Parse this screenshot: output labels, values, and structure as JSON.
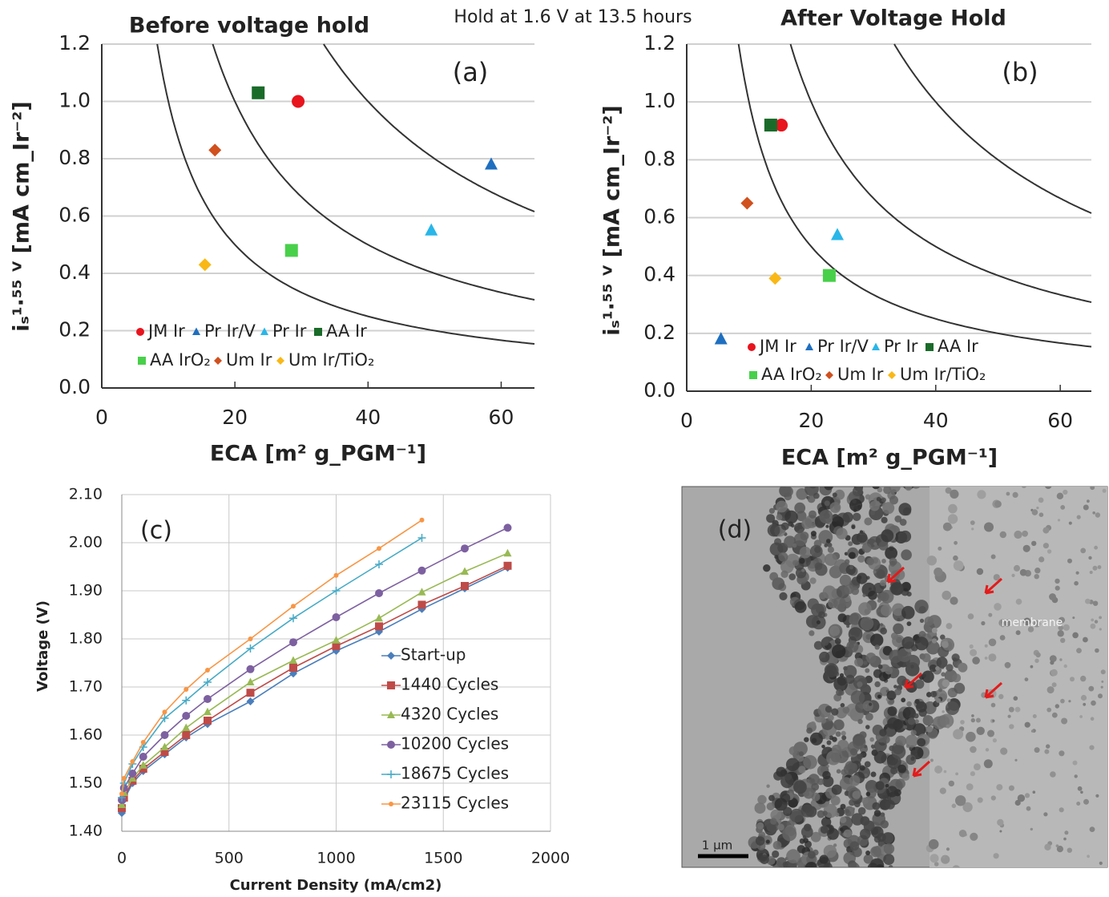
{
  "header": "Hold at 1.6 V at 13.5 hours",
  "chart_data": [
    {
      "type": "scatter",
      "title": "Before voltage hold",
      "panel_label": "(a)",
      "xlabel": "ECA [m² g_PGM⁻¹]",
      "ylabel": "iₛ¹·⁵⁵ ⱽ [mA cm_Ir⁻²]",
      "xlim": [
        0,
        65
      ],
      "ylim": [
        0,
        1.2
      ],
      "xticks": [
        0,
        20,
        40,
        60
      ],
      "yticks": [
        {
          "value": 0,
          "label": "0.0"
        },
        0.2,
        0.4,
        0.6,
        0.8,
        {
          "value": 1,
          "label": "1.0"
        },
        1.2
      ],
      "grid": true,
      "iso_curves": [
        10,
        20,
        40
      ],
      "series": [
        {
          "name": "JM Ir",
          "color": "#e8141e",
          "marker": "circle",
          "x": [
            29.5
          ],
          "values": [
            1.0
          ]
        },
        {
          "name": "Pr Ir/V",
          "color": "#1f6fc0",
          "marker": "triangle",
          "x": [
            58.5
          ],
          "values": [
            0.78
          ]
        },
        {
          "name": "Pr Ir",
          "color": "#29b6e8",
          "marker": "triangle",
          "x": [
            49.5
          ],
          "values": [
            0.55
          ]
        },
        {
          "name": "AA Ir",
          "color": "#1a6b2a",
          "marker": "square",
          "x": [
            23.5
          ],
          "values": [
            1.03
          ]
        },
        {
          "name": "AA IrO₂",
          "color": "#48d04a",
          "marker": "square",
          "x": [
            28.5
          ],
          "values": [
            0.48
          ]
        },
        {
          "name": "Um Ir",
          "color": "#d0501e",
          "marker": "diamond",
          "x": [
            17
          ],
          "values": [
            0.83
          ]
        },
        {
          "name": "Um Ir/TiO₂",
          "color": "#f9b816",
          "marker": "diamond",
          "x": [
            15.5
          ],
          "values": [
            0.43
          ]
        }
      ]
    },
    {
      "type": "scatter",
      "title": "After Voltage Hold",
      "panel_label": "(b)",
      "xlabel": "ECA [m² g_PGM⁻¹]",
      "ylabel": "iₛ¹·⁵⁵ ⱽ [mA cm_Ir⁻²]",
      "xlim": [
        0,
        65
      ],
      "ylim": [
        0,
        1.2
      ],
      "xticks": [
        0,
        20,
        40,
        60
      ],
      "yticks": [
        {
          "value": 0,
          "label": "0.0"
        },
        0.2,
        0.4,
        0.6,
        0.8,
        {
          "value": 1,
          "label": "1.0"
        },
        1.2
      ],
      "grid": true,
      "iso_curves": [
        10,
        20,
        40
      ],
      "series": [
        {
          "name": "JM Ir",
          "color": "#e8141e",
          "marker": "circle",
          "x": [
            15.2
          ],
          "values": [
            0.92
          ]
        },
        {
          "name": "Pr Ir/V",
          "color": "#1f6fc0",
          "marker": "triangle",
          "x": [
            5.5
          ],
          "values": [
            0.18
          ]
        },
        {
          "name": "Pr Ir",
          "color": "#29b6e8",
          "marker": "triangle",
          "x": [
            24.2
          ],
          "values": [
            0.54
          ]
        },
        {
          "name": "AA Ir",
          "color": "#1a6b2a",
          "marker": "square",
          "x": [
            13.5
          ],
          "values": [
            0.92
          ]
        },
        {
          "name": "AA IrO₂",
          "color": "#48d04a",
          "marker": "square",
          "x": [
            22.9
          ],
          "values": [
            0.4
          ]
        },
        {
          "name": "Um Ir",
          "color": "#d0501e",
          "marker": "diamond",
          "x": [
            9.7
          ],
          "values": [
            0.65
          ]
        },
        {
          "name": "Um Ir/TiO₂",
          "color": "#f9b816",
          "marker": "diamond",
          "x": [
            14.2
          ],
          "values": [
            0.39
          ]
        }
      ]
    },
    {
      "type": "line",
      "panel_label": "(c)",
      "xlabel": "Current Density (mA/cm2)",
      "ylabel": "Voltage (V)",
      "xlim": [
        0,
        2000
      ],
      "ylim": [
        1.4,
        2.1
      ],
      "xticks": [
        0,
        500,
        1000,
        1500,
        2000
      ],
      "yticks": [
        {
          "value": 1.4,
          "label": "1.40"
        },
        {
          "value": 1.5,
          "label": "1.50"
        },
        {
          "value": 1.6,
          "label": "1.60"
        },
        {
          "value": 1.7,
          "label": "1.70"
        },
        {
          "value": 1.8,
          "label": "1.80"
        },
        {
          "value": 1.9,
          "label": "1.90"
        },
        {
          "value": 2.0,
          "label": "2.00"
        },
        {
          "value": 2.1,
          "label": "2.10"
        }
      ],
      "grid": true,
      "x": [
        0,
        10,
        50,
        100,
        200,
        300,
        400,
        600,
        800,
        1000,
        1200,
        1400,
        1600,
        1800
      ],
      "series": [
        {
          "name": "Start-up",
          "color": "#4a7ebb",
          "marker": "diamond",
          "values": [
            1.438,
            1.465,
            1.5,
            1.525,
            1.56,
            1.595,
            1.623,
            1.67,
            1.728,
            1.775,
            1.815,
            1.862,
            1.905,
            1.948
          ]
        },
        {
          "name": "1440 Cycles",
          "color": "#be4b48",
          "marker": "square",
          "values": [
            1.448,
            1.47,
            1.505,
            1.53,
            1.565,
            1.6,
            1.63,
            1.688,
            1.74,
            1.785,
            1.826,
            1.871,
            1.91,
            1.952
          ]
        },
        {
          "name": "4320 Cycles",
          "color": "#98b954",
          "marker": "triangle",
          "values": [
            1.455,
            1.48,
            1.51,
            1.537,
            1.575,
            1.615,
            1.648,
            1.71,
            1.755,
            1.797,
            1.843,
            1.897,
            1.94,
            1.978
          ]
        },
        {
          "name": "10200 Cycles",
          "color": "#7d60a0",
          "marker": "circle",
          "values": [
            1.465,
            1.49,
            1.52,
            1.555,
            1.6,
            1.64,
            1.675,
            1.737,
            1.793,
            1.845,
            1.895,
            1.942,
            1.988,
            2.031
          ]
        },
        {
          "name": "18675 Cycles",
          "color": "#46aac5",
          "marker": "cross",
          "values": [
            1.47,
            1.5,
            1.54,
            1.575,
            1.635,
            1.672,
            1.71,
            1.78,
            1.843,
            1.9,
            1.955,
            2.01,
            null,
            null
          ]
        },
        {
          "name": "23115 Cycles",
          "color": "#f79646",
          "marker": "dot",
          "values": [
            1.478,
            1.51,
            1.545,
            1.585,
            1.648,
            1.695,
            1.735,
            1.8,
            1.868,
            1.932,
            1.988,
            2.047,
            null,
            null
          ]
        }
      ]
    }
  ],
  "micrograph": {
    "label": "(d)",
    "annotation": "membrane",
    "scale_bar": "1 μm"
  }
}
